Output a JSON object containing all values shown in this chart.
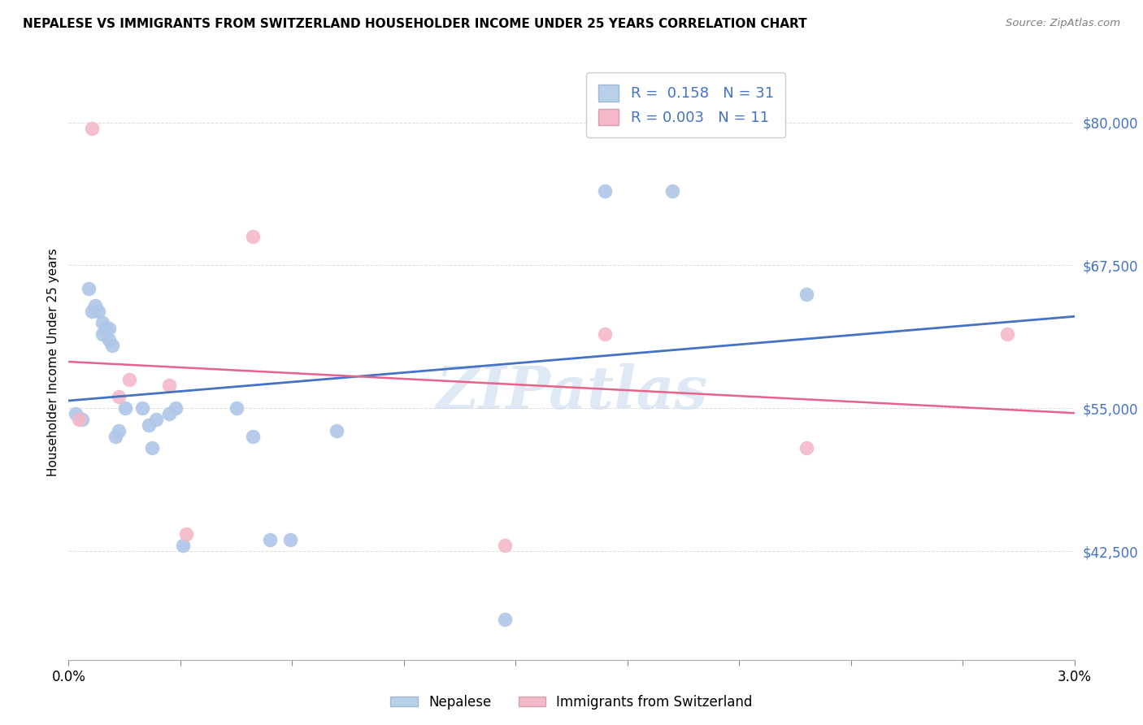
{
  "title": "NEPALESE VS IMMIGRANTS FROM SWITZERLAND HOUSEHOLDER INCOME UNDER 25 YEARS CORRELATION CHART",
  "source": "Source: ZipAtlas.com",
  "ylabel": "Householder Income Under 25 years",
  "xmin": 0.0,
  "xmax": 0.03,
  "ymin": 33000,
  "ymax": 85000,
  "watermark": "ZIPatlas",
  "nepalese_R": "0.158",
  "nepalese_N": "31",
  "swiss_R": "0.003",
  "swiss_N": "11",
  "nepalese_color": "#aec6e8",
  "swiss_color": "#f4b8c8",
  "nepalese_line_color": "#4472c4",
  "swiss_line_color": "#e8638a",
  "nepalese_x": [
    0.0002,
    0.0004,
    0.0006,
    0.0007,
    0.0008,
    0.0009,
    0.001,
    0.001,
    0.0011,
    0.0012,
    0.0012,
    0.0013,
    0.0014,
    0.0015,
    0.0017,
    0.0022,
    0.0024,
    0.0025,
    0.0026,
    0.003,
    0.0032,
    0.0034,
    0.005,
    0.0055,
    0.006,
    0.0066,
    0.008,
    0.013,
    0.016,
    0.018,
    0.022
  ],
  "nepalese_y": [
    54500,
    54000,
    65500,
    63500,
    64000,
    63500,
    62500,
    61500,
    62000,
    62000,
    61000,
    60500,
    52500,
    53000,
    55000,
    55000,
    53500,
    51500,
    54000,
    54500,
    55000,
    43000,
    55000,
    52500,
    43500,
    43500,
    53000,
    36500,
    74000,
    74000,
    65000
  ],
  "swiss_x": [
    0.0003,
    0.0007,
    0.0015,
    0.0018,
    0.003,
    0.0035,
    0.0055,
    0.013,
    0.016,
    0.022,
    0.028
  ],
  "swiss_y": [
    54000,
    79500,
    56000,
    57500,
    57000,
    44000,
    70000,
    43000,
    61500,
    51500,
    61500
  ],
  "grid_color": "#dddddd",
  "background_color": "#ffffff",
  "legend_color_nepalese": "#b8d0e8",
  "legend_color_swiss": "#f4b8c8",
  "ytick_positions": [
    42500,
    55000,
    67500,
    80000
  ],
  "ytick_labels": [
    "$42,500",
    "$55,000",
    "$67,500",
    "$80,000"
  ]
}
